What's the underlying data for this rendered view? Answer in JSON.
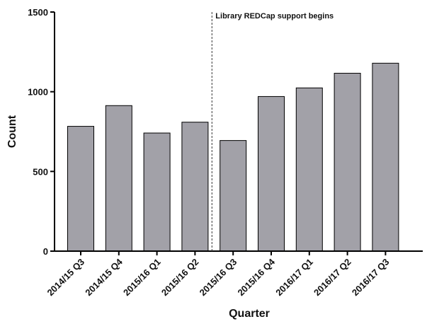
{
  "chart_data": {
    "type": "bar",
    "categories": [
      "2014/15 Q3",
      "2014/15 Q4",
      "2015/16 Q1",
      "2015/16 Q2",
      "2015/16 Q3",
      "2015/16 Q4",
      "2016/17 Q1",
      "2016/17 Q2",
      "2016/17 Q3"
    ],
    "values": [
      783,
      913,
      741,
      809,
      694,
      970,
      1024,
      1116,
      1179
    ],
    "title": "",
    "xlabel": "Quarter",
    "ylabel": "Count",
    "ylim": [
      0,
      1500
    ],
    "yticks": [
      0,
      500,
      1000,
      1500
    ],
    "grid": false,
    "bar_color": "#a2a1a8",
    "annotation": {
      "text": "Library REDCap support begins",
      "style": "dashed-vertical-line",
      "between_categories": [
        "2015/16 Q2",
        "2015/16 Q3"
      ]
    }
  }
}
